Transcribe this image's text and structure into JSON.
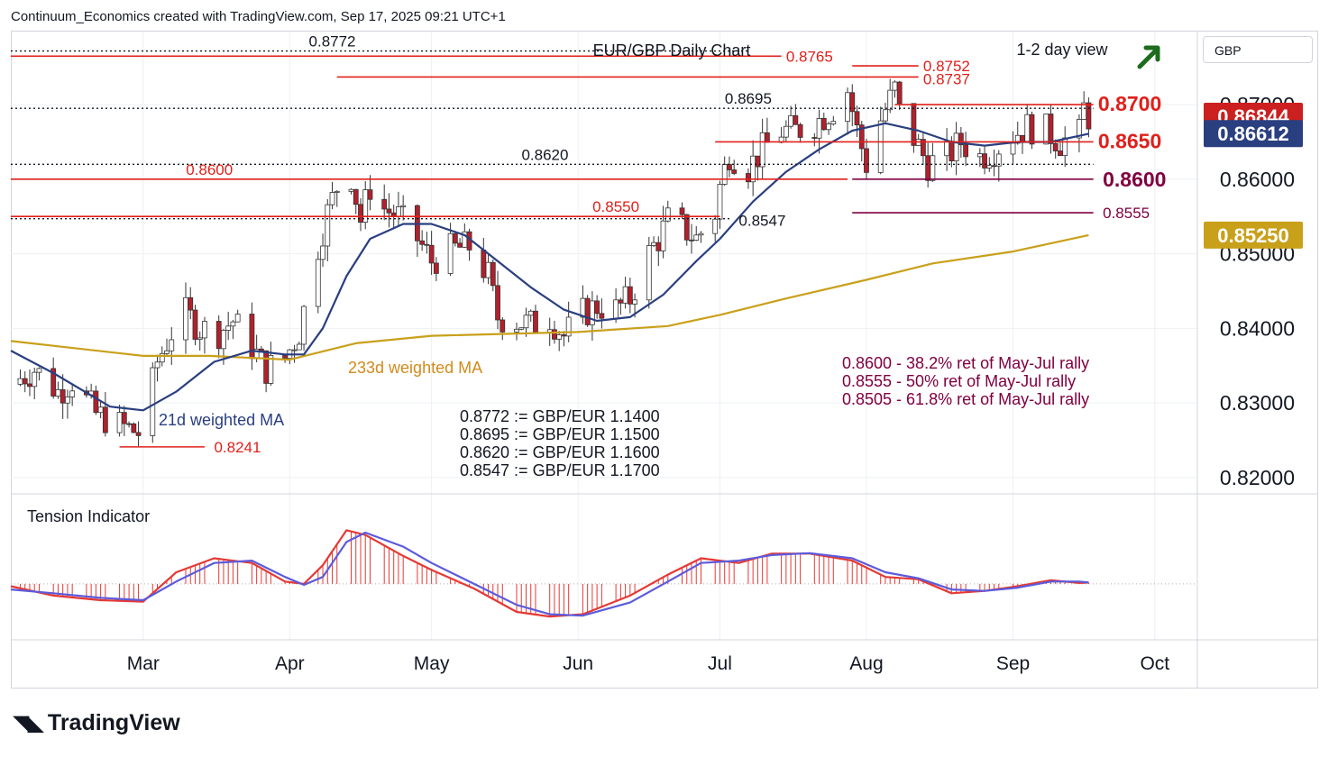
{
  "header": {
    "credit": "Continuum_Economics created with TradingView.com, Sep 17, 2025 09:21 UTC+1"
  },
  "branding": {
    "name": "TradingView"
  },
  "currency_button": "GBP",
  "colors": {
    "red_level": "#e0201b",
    "maroon_level": "#800040",
    "black_level": "#131722",
    "ma21": "#2a3f80",
    "ma233": "#c9a01a",
    "up_candle": "#26a69a",
    "down_candle": "#b2202c",
    "tension_red": "#e53935",
    "tension_blue": "#5b5bdc",
    "arrow": "#1e6b1e"
  },
  "chart_data": {
    "type": "candlestick",
    "title": "EUR/GBP Daily Chart",
    "view_label": "1-2 day view",
    "view_direction": "up",
    "ylim": [
      0.8178,
      0.8798
    ],
    "ytick_labels": [
      "0.82000",
      "0.83000",
      "0.84000",
      "0.85000",
      "0.86000",
      "0.87000"
    ],
    "ytick_values": [
      0.82,
      0.83,
      0.84,
      0.85,
      0.86,
      0.87
    ],
    "x_start": "2025-02-01",
    "x_end": "2025-10-10",
    "x_ticks": [
      {
        "label": "Mar",
        "date": "2025-03-01"
      },
      {
        "label": "Apr",
        "date": "2025-04-01"
      },
      {
        "label": "May",
        "date": "2025-05-01"
      },
      {
        "label": "Jun",
        "date": "2025-06-01"
      },
      {
        "label": "Jul",
        "date": "2025-07-01"
      },
      {
        "label": "Aug",
        "date": "2025-08-01"
      },
      {
        "label": "Sep",
        "date": "2025-09-01"
      },
      {
        "label": "Oct",
        "date": "2025-10-01"
      }
    ],
    "price_path": [
      [
        "2025-02-01",
        0.8325
      ],
      [
        "2025-02-06",
        0.8345
      ],
      [
        "2025-02-11",
        0.8315
      ],
      [
        "2025-02-14",
        0.833
      ],
      [
        "2025-02-19",
        0.8285
      ],
      [
        "2025-02-24",
        0.827
      ],
      [
        "2025-02-28",
        0.826
      ],
      [
        "2025-03-01",
        0.827
      ],
      [
        "2025-03-04",
        0.8355
      ],
      [
        "2025-03-07",
        0.8395
      ],
      [
        "2025-03-10",
        0.842
      ],
      [
        "2025-03-13",
        0.84
      ],
      [
        "2025-03-17",
        0.8395
      ],
      [
        "2025-03-20",
        0.841
      ],
      [
        "2025-03-24",
        0.8375
      ],
      [
        "2025-03-27",
        0.8345
      ],
      [
        "2025-03-31",
        0.836
      ],
      [
        "2025-04-03",
        0.8395
      ],
      [
        "2025-04-07",
        0.851
      ],
      [
        "2025-04-09",
        0.8555
      ],
      [
        "2025-04-11",
        0.859
      ],
      [
        "2025-04-14",
        0.8605
      ],
      [
        "2025-04-16",
        0.8545
      ],
      [
        "2025-04-18",
        0.859
      ],
      [
        "2025-04-21",
        0.856
      ],
      [
        "2025-04-24",
        0.855
      ],
      [
        "2025-04-28",
        0.852
      ],
      [
        "2025-05-01",
        0.849
      ],
      [
        "2025-05-05",
        0.8505
      ],
      [
        "2025-05-09",
        0.851
      ],
      [
        "2025-05-13",
        0.847
      ],
      [
        "2025-05-15",
        0.8415
      ],
      [
        "2025-05-19",
        0.841
      ],
      [
        "2025-05-22",
        0.8405
      ],
      [
        "2025-05-26",
        0.8415
      ],
      [
        "2025-05-29",
        0.839
      ],
      [
        "2025-06-02",
        0.842
      ],
      [
        "2025-06-05",
        0.843
      ],
      [
        "2025-06-09",
        0.8425
      ],
      [
        "2025-06-12",
        0.844
      ],
      [
        "2025-06-16",
        0.85
      ],
      [
        "2025-06-18",
        0.852
      ],
      [
        "2025-06-20",
        0.8545
      ],
      [
        "2025-06-23",
        0.8535
      ],
      [
        "2025-06-26",
        0.852
      ],
      [
        "2025-06-30",
        0.8555
      ],
      [
        "2025-07-01",
        0.859
      ],
      [
        "2025-07-03",
        0.8635
      ],
      [
        "2025-07-07",
        0.8615
      ],
      [
        "2025-07-10",
        0.864
      ],
      [
        "2025-07-14",
        0.8665
      ],
      [
        "2025-07-17",
        0.8665
      ],
      [
        "2025-07-21",
        0.8675
      ],
      [
        "2025-07-24",
        0.869
      ],
      [
        "2025-07-26",
        0.87
      ],
      [
        "2025-07-28",
        0.872
      ],
      [
        "2025-07-30",
        0.8665
      ],
      [
        "2025-08-01",
        0.862
      ],
      [
        "2025-08-04",
        0.868
      ],
      [
        "2025-08-07",
        0.872
      ],
      [
        "2025-08-08",
        0.869
      ],
      [
        "2025-08-11",
        0.8655
      ],
      [
        "2025-08-14",
        0.862
      ],
      [
        "2025-08-18",
        0.863
      ],
      [
        "2025-08-21",
        0.865
      ],
      [
        "2025-08-25",
        0.863
      ],
      [
        "2025-08-28",
        0.864
      ],
      [
        "2025-09-01",
        0.866
      ],
      [
        "2025-09-04",
        0.867
      ],
      [
        "2025-09-08",
        0.8665
      ],
      [
        "2025-09-11",
        0.865
      ],
      [
        "2025-09-15",
        0.866
      ],
      [
        "2025-09-16",
        0.8695
      ],
      [
        "2025-09-17",
        0.8684
      ]
    ],
    "ma21_path": [
      [
        "2025-02-01",
        0.837
      ],
      [
        "2025-02-10",
        0.834
      ],
      [
        "2025-02-22",
        0.8295
      ],
      [
        "2025-03-01",
        0.829
      ],
      [
        "2025-03-08",
        0.8315
      ],
      [
        "2025-03-16",
        0.8355
      ],
      [
        "2025-03-24",
        0.837
      ],
      [
        "2025-03-31",
        0.8365
      ],
      [
        "2025-04-04",
        0.8365
      ],
      [
        "2025-04-08",
        0.84
      ],
      [
        "2025-04-13",
        0.847
      ],
      [
        "2025-04-18",
        0.852
      ],
      [
        "2025-04-25",
        0.854
      ],
      [
        "2025-05-01",
        0.854
      ],
      [
        "2025-05-08",
        0.8525
      ],
      [
        "2025-05-15",
        0.849
      ],
      [
        "2025-05-22",
        0.8455
      ],
      [
        "2025-05-29",
        0.8425
      ],
      [
        "2025-06-05",
        0.841
      ],
      [
        "2025-06-12",
        0.8415
      ],
      [
        "2025-06-19",
        0.8445
      ],
      [
        "2025-06-26",
        0.849
      ],
      [
        "2025-07-01",
        0.852
      ],
      [
        "2025-07-08",
        0.857
      ],
      [
        "2025-07-15",
        0.861
      ],
      [
        "2025-07-22",
        0.864
      ],
      [
        "2025-07-29",
        0.8665
      ],
      [
        "2025-08-05",
        0.8675
      ],
      [
        "2025-08-12",
        0.8665
      ],
      [
        "2025-08-19",
        0.865
      ],
      [
        "2025-08-26",
        0.8645
      ],
      [
        "2025-09-02",
        0.865
      ],
      [
        "2025-09-09",
        0.865
      ],
      [
        "2025-09-17",
        0.8661
      ]
    ],
    "ma233_path": [
      [
        "2025-02-01",
        0.8383
      ],
      [
        "2025-03-01",
        0.8363
      ],
      [
        "2025-03-15",
        0.8363
      ],
      [
        "2025-04-01",
        0.8358
      ],
      [
        "2025-04-15",
        0.838
      ],
      [
        "2025-05-01",
        0.839
      ],
      [
        "2025-06-01",
        0.8395
      ],
      [
        "2025-06-20",
        0.8403
      ],
      [
        "2025-07-01",
        0.8418
      ],
      [
        "2025-07-15",
        0.844
      ],
      [
        "2025-08-01",
        0.8465
      ],
      [
        "2025-08-15",
        0.8487
      ],
      [
        "2025-09-01",
        0.8503
      ],
      [
        "2025-09-17",
        0.8525
      ]
    ],
    "levels": [
      {
        "id": "0.8772",
        "label": "0.8772",
        "price": 0.8772,
        "start": "2025-02-01",
        "end": "2025-07-07",
        "style": "dotted",
        "color": "black"
      },
      {
        "id": "0.8765",
        "label": "0.8765",
        "price": 0.8765,
        "start": "2025-02-01",
        "end": "2025-07-14",
        "style": "solid",
        "color": "red"
      },
      {
        "id": "0.8752",
        "label": "0.8752",
        "price": 0.8752,
        "start": "2025-07-29",
        "end": "2025-08-12",
        "style": "solid",
        "color": "red"
      },
      {
        "id": "0.8737",
        "label": "0.8737",
        "price": 0.8737,
        "start": "2025-04-11",
        "end": "2025-08-12",
        "style": "solid",
        "color": "red"
      },
      {
        "id": "0.8700",
        "label": "0.8700",
        "price": 0.87,
        "start": "2025-08-07",
        "end": "2025-09-18",
        "style": "solid",
        "color": "red",
        "big": true
      },
      {
        "id": "0.8695",
        "label": "0.8695",
        "price": 0.8695,
        "start": "2025-02-01",
        "end": "2025-09-18",
        "style": "dotted",
        "color": "black"
      },
      {
        "id": "0.8650",
        "label": "0.8650",
        "price": 0.865,
        "start": "2025-06-30",
        "end": "2025-09-18",
        "style": "solid",
        "color": "red",
        "big": true
      },
      {
        "id": "0.8620",
        "label": "0.8620",
        "price": 0.862,
        "start": "2025-02-01",
        "end": "2025-09-18",
        "style": "dotted",
        "color": "black"
      },
      {
        "id": "0.8600",
        "label": "0.8600",
        "price": 0.86,
        "start": "2025-02-01",
        "end": "2025-07-28",
        "style": "solid",
        "color": "red"
      },
      {
        "id": "0.8600b",
        "label": "0.8600",
        "price": 0.86,
        "start": "2025-07-29",
        "end": "2025-09-18",
        "style": "solid",
        "color": "maroon",
        "big": true
      },
      {
        "id": "0.8555",
        "label": "0.8555",
        "price": 0.8555,
        "start": "2025-07-29",
        "end": "2025-09-18",
        "style": "solid",
        "color": "maroon"
      },
      {
        "id": "0.8550",
        "label": "0.8550",
        "price": 0.855,
        "start": "2025-02-01",
        "end": "2025-07-01",
        "style": "solid",
        "color": "red"
      },
      {
        "id": "0.8547",
        "label": "0.8547",
        "price": 0.8547,
        "start": "2025-02-01",
        "end": "2025-07-03",
        "style": "dotted",
        "color": "black"
      },
      {
        "id": "0.8241",
        "label": "0.8241",
        "price": 0.8241,
        "start": "2025-02-24",
        "end": "2025-03-14",
        "style": "solid",
        "color": "red"
      }
    ],
    "price_tags": [
      {
        "label": "0.86844",
        "price": 0.86844,
        "color": "#cc1f1f"
      },
      {
        "label": "0.86612",
        "price": 0.86612,
        "color": "#2a3f80"
      },
      {
        "label": "0.85250",
        "price": 0.8525,
        "color": "#c9a01a"
      }
    ],
    "ma_labels": {
      "ma21": "21d weighted MA",
      "ma233": "233d weighted MA"
    },
    "equivalences": [
      "0.8772 := GBP/EUR 1.1400",
      "0.8695 := GBP/EUR 1.1500",
      "0.8620 := GBP/EUR 1.1600",
      "0.8547 := GBP/EUR 1.1700"
    ],
    "retracements": [
      "0.8600 - 38.2% ret of May-Jul rally",
      "0.8555 - 50% ret of May-Jul rally",
      "0.8505 - 61.8% ret of May-Jul rally"
    ],
    "tension": {
      "title": "Tension Indicator",
      "ylim": [
        -1.2,
        1.7
      ],
      "red_path": [
        [
          "2025-02-01",
          -0.05
        ],
        [
          "2025-02-10",
          -0.25
        ],
        [
          "2025-02-20",
          -0.35
        ],
        [
          "2025-03-01",
          -0.38
        ],
        [
          "2025-03-08",
          0.25
        ],
        [
          "2025-03-16",
          0.55
        ],
        [
          "2025-03-24",
          0.45
        ],
        [
          "2025-03-31",
          0.05
        ],
        [
          "2025-04-04",
          0.0
        ],
        [
          "2025-04-08",
          0.4
        ],
        [
          "2025-04-13",
          1.15
        ],
        [
          "2025-04-17",
          1.05
        ],
        [
          "2025-04-25",
          0.6
        ],
        [
          "2025-05-01",
          0.3
        ],
        [
          "2025-05-10",
          -0.1
        ],
        [
          "2025-05-19",
          -0.6
        ],
        [
          "2025-05-26",
          -0.7
        ],
        [
          "2025-06-02",
          -0.65
        ],
        [
          "2025-06-12",
          -0.25
        ],
        [
          "2025-06-20",
          0.2
        ],
        [
          "2025-06-27",
          0.55
        ],
        [
          "2025-07-05",
          0.45
        ],
        [
          "2025-07-12",
          0.65
        ],
        [
          "2025-07-20",
          0.65
        ],
        [
          "2025-07-29",
          0.5
        ],
        [
          "2025-08-05",
          0.15
        ],
        [
          "2025-08-12",
          0.1
        ],
        [
          "2025-08-19",
          -0.2
        ],
        [
          "2025-08-26",
          -0.15
        ],
        [
          "2025-09-02",
          -0.05
        ],
        [
          "2025-09-09",
          0.08
        ],
        [
          "2025-09-15",
          0.02
        ],
        [
          "2025-09-17",
          0.03
        ]
      ],
      "blue_path": [
        [
          "2025-02-01",
          -0.12
        ],
        [
          "2025-02-10",
          -0.2
        ],
        [
          "2025-02-20",
          -0.3
        ],
        [
          "2025-03-01",
          -0.35
        ],
        [
          "2025-03-08",
          0.05
        ],
        [
          "2025-03-16",
          0.45
        ],
        [
          "2025-03-24",
          0.5
        ],
        [
          "2025-03-31",
          0.15
        ],
        [
          "2025-04-04",
          -0.02
        ],
        [
          "2025-04-08",
          0.15
        ],
        [
          "2025-04-13",
          0.9
        ],
        [
          "2025-04-17",
          1.1
        ],
        [
          "2025-04-25",
          0.8
        ],
        [
          "2025-05-01",
          0.45
        ],
        [
          "2025-05-10",
          0.0
        ],
        [
          "2025-05-19",
          -0.45
        ],
        [
          "2025-05-26",
          -0.65
        ],
        [
          "2025-06-02",
          -0.68
        ],
        [
          "2025-06-12",
          -0.4
        ],
        [
          "2025-06-20",
          0.05
        ],
        [
          "2025-06-27",
          0.45
        ],
        [
          "2025-07-05",
          0.5
        ],
        [
          "2025-07-12",
          0.62
        ],
        [
          "2025-07-20",
          0.66
        ],
        [
          "2025-07-29",
          0.55
        ],
        [
          "2025-08-05",
          0.25
        ],
        [
          "2025-08-12",
          0.12
        ],
        [
          "2025-08-19",
          -0.12
        ],
        [
          "2025-08-26",
          -0.15
        ],
        [
          "2025-09-02",
          -0.08
        ],
        [
          "2025-09-09",
          0.05
        ],
        [
          "2025-09-15",
          0.05
        ],
        [
          "2025-09-17",
          0.03
        ]
      ]
    }
  }
}
